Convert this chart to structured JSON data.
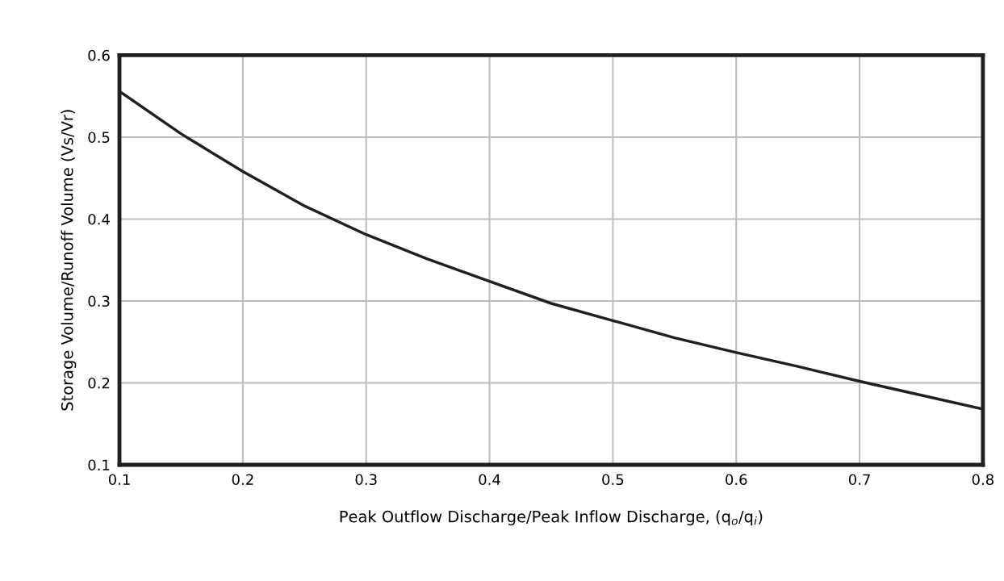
{
  "chart_data": {
    "type": "line",
    "xlabel": "Peak Outflow Discharge/Peak Inflow Discharge, (q$_{o}$/q$_{i}$)",
    "ylabel": "Storage Volume/Runoff Volume (Vs/Vr)",
    "x": [
      0.1,
      0.15,
      0.2,
      0.25,
      0.3,
      0.35,
      0.4,
      0.45,
      0.5,
      0.55,
      0.6,
      0.65,
      0.7,
      0.75,
      0.8
    ],
    "series": [
      {
        "color": "#231f20",
        "values": [
          0.556,
          0.504,
          0.458,
          0.416,
          0.381,
          0.351,
          0.324,
          0.297,
          0.276,
          0.255,
          0.237,
          0.22,
          0.202,
          0.185,
          0.168
        ]
      }
    ],
    "xlim": [
      0.1,
      0.8
    ],
    "xticks": [
      0.1,
      0.2,
      0.3,
      0.4,
      0.5,
      0.6,
      0.7,
      0.8
    ],
    "ylim": [
      0.1,
      0.6
    ],
    "yticks": [
      0.1,
      0.2,
      0.3,
      0.4,
      0.5,
      0.6
    ],
    "grid": true,
    "legend": false,
    "marker": "none",
    "line_style": "solid"
  }
}
